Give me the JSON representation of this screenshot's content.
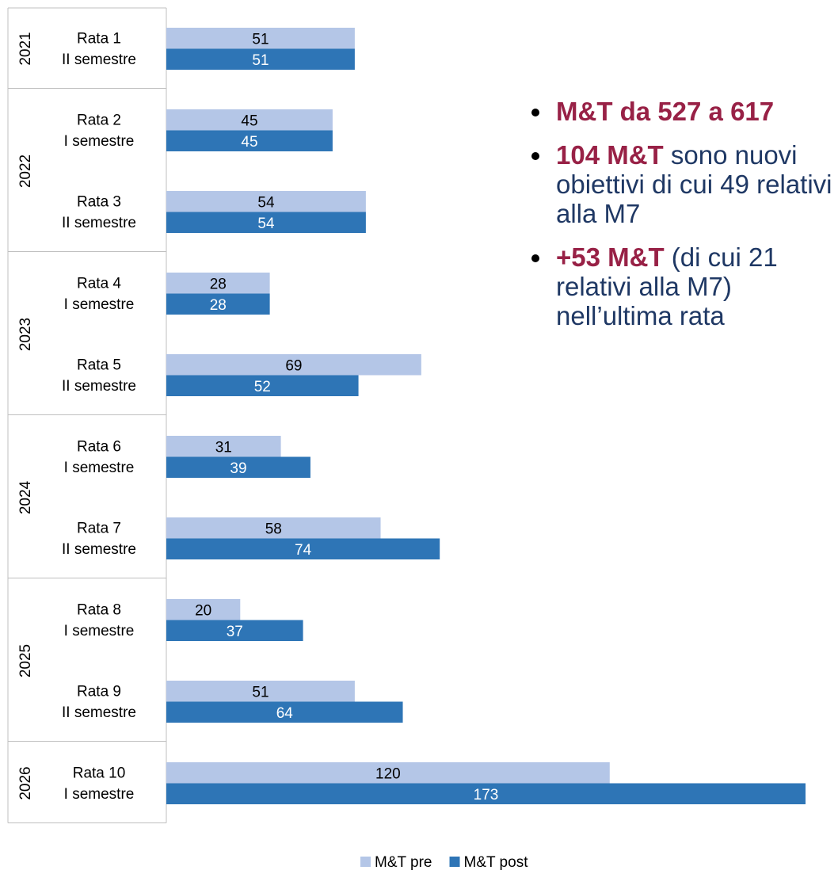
{
  "chart_data": {
    "type": "bar",
    "orientation": "horizontal",
    "groups": [
      {
        "label": "2021",
        "span": 1
      },
      {
        "label": "2022",
        "span": 2
      },
      {
        "label": "2023",
        "span": 2
      },
      {
        "label": "2024",
        "span": 2
      },
      {
        "label": "2025",
        "span": 2
      },
      {
        "label": "2026",
        "span": 1
      }
    ],
    "categories": [
      [
        "Rata 1",
        "II semestre"
      ],
      [
        "Rata 2",
        "I semestre"
      ],
      [
        "Rata 3",
        "II semestre"
      ],
      [
        "Rata 4",
        "I semestre"
      ],
      [
        "Rata 5",
        "II semestre"
      ],
      [
        "Rata 6",
        "I semestre"
      ],
      [
        "Rata 7",
        "II semestre"
      ],
      [
        "Rata 8",
        "I semestre"
      ],
      [
        "Rata 9",
        "II semestre"
      ],
      [
        "Rata 10",
        "I semestre"
      ]
    ],
    "series": [
      {
        "name": "M&T pre",
        "color": "#b4c6e7",
        "label_color": "#000000",
        "values": [
          51,
          45,
          54,
          28,
          69,
          31,
          58,
          20,
          51,
          120
        ]
      },
      {
        "name": "M&T post",
        "color": "#2e75b6",
        "label_color": "#ffffff",
        "values": [
          51,
          45,
          54,
          28,
          52,
          39,
          74,
          37,
          64,
          173
        ]
      }
    ],
    "xlim": [
      0,
      173
    ],
    "legend": "bottom",
    "annotations": [
      [
        {
          "text": "M&T da 527 a 617",
          "bold": true
        }
      ],
      [
        {
          "text": "104 M&T",
          "bold": true
        },
        {
          "text": " sono nuovi obiettivi di cui 49 relativi alla M7",
          "bold": false
        }
      ],
      [
        {
          "text": "+53 M&T",
          "bold": true
        },
        {
          "text": " (di cui 21 relativi alla M7) nell’ultima rata",
          "bold": false
        }
      ]
    ]
  }
}
